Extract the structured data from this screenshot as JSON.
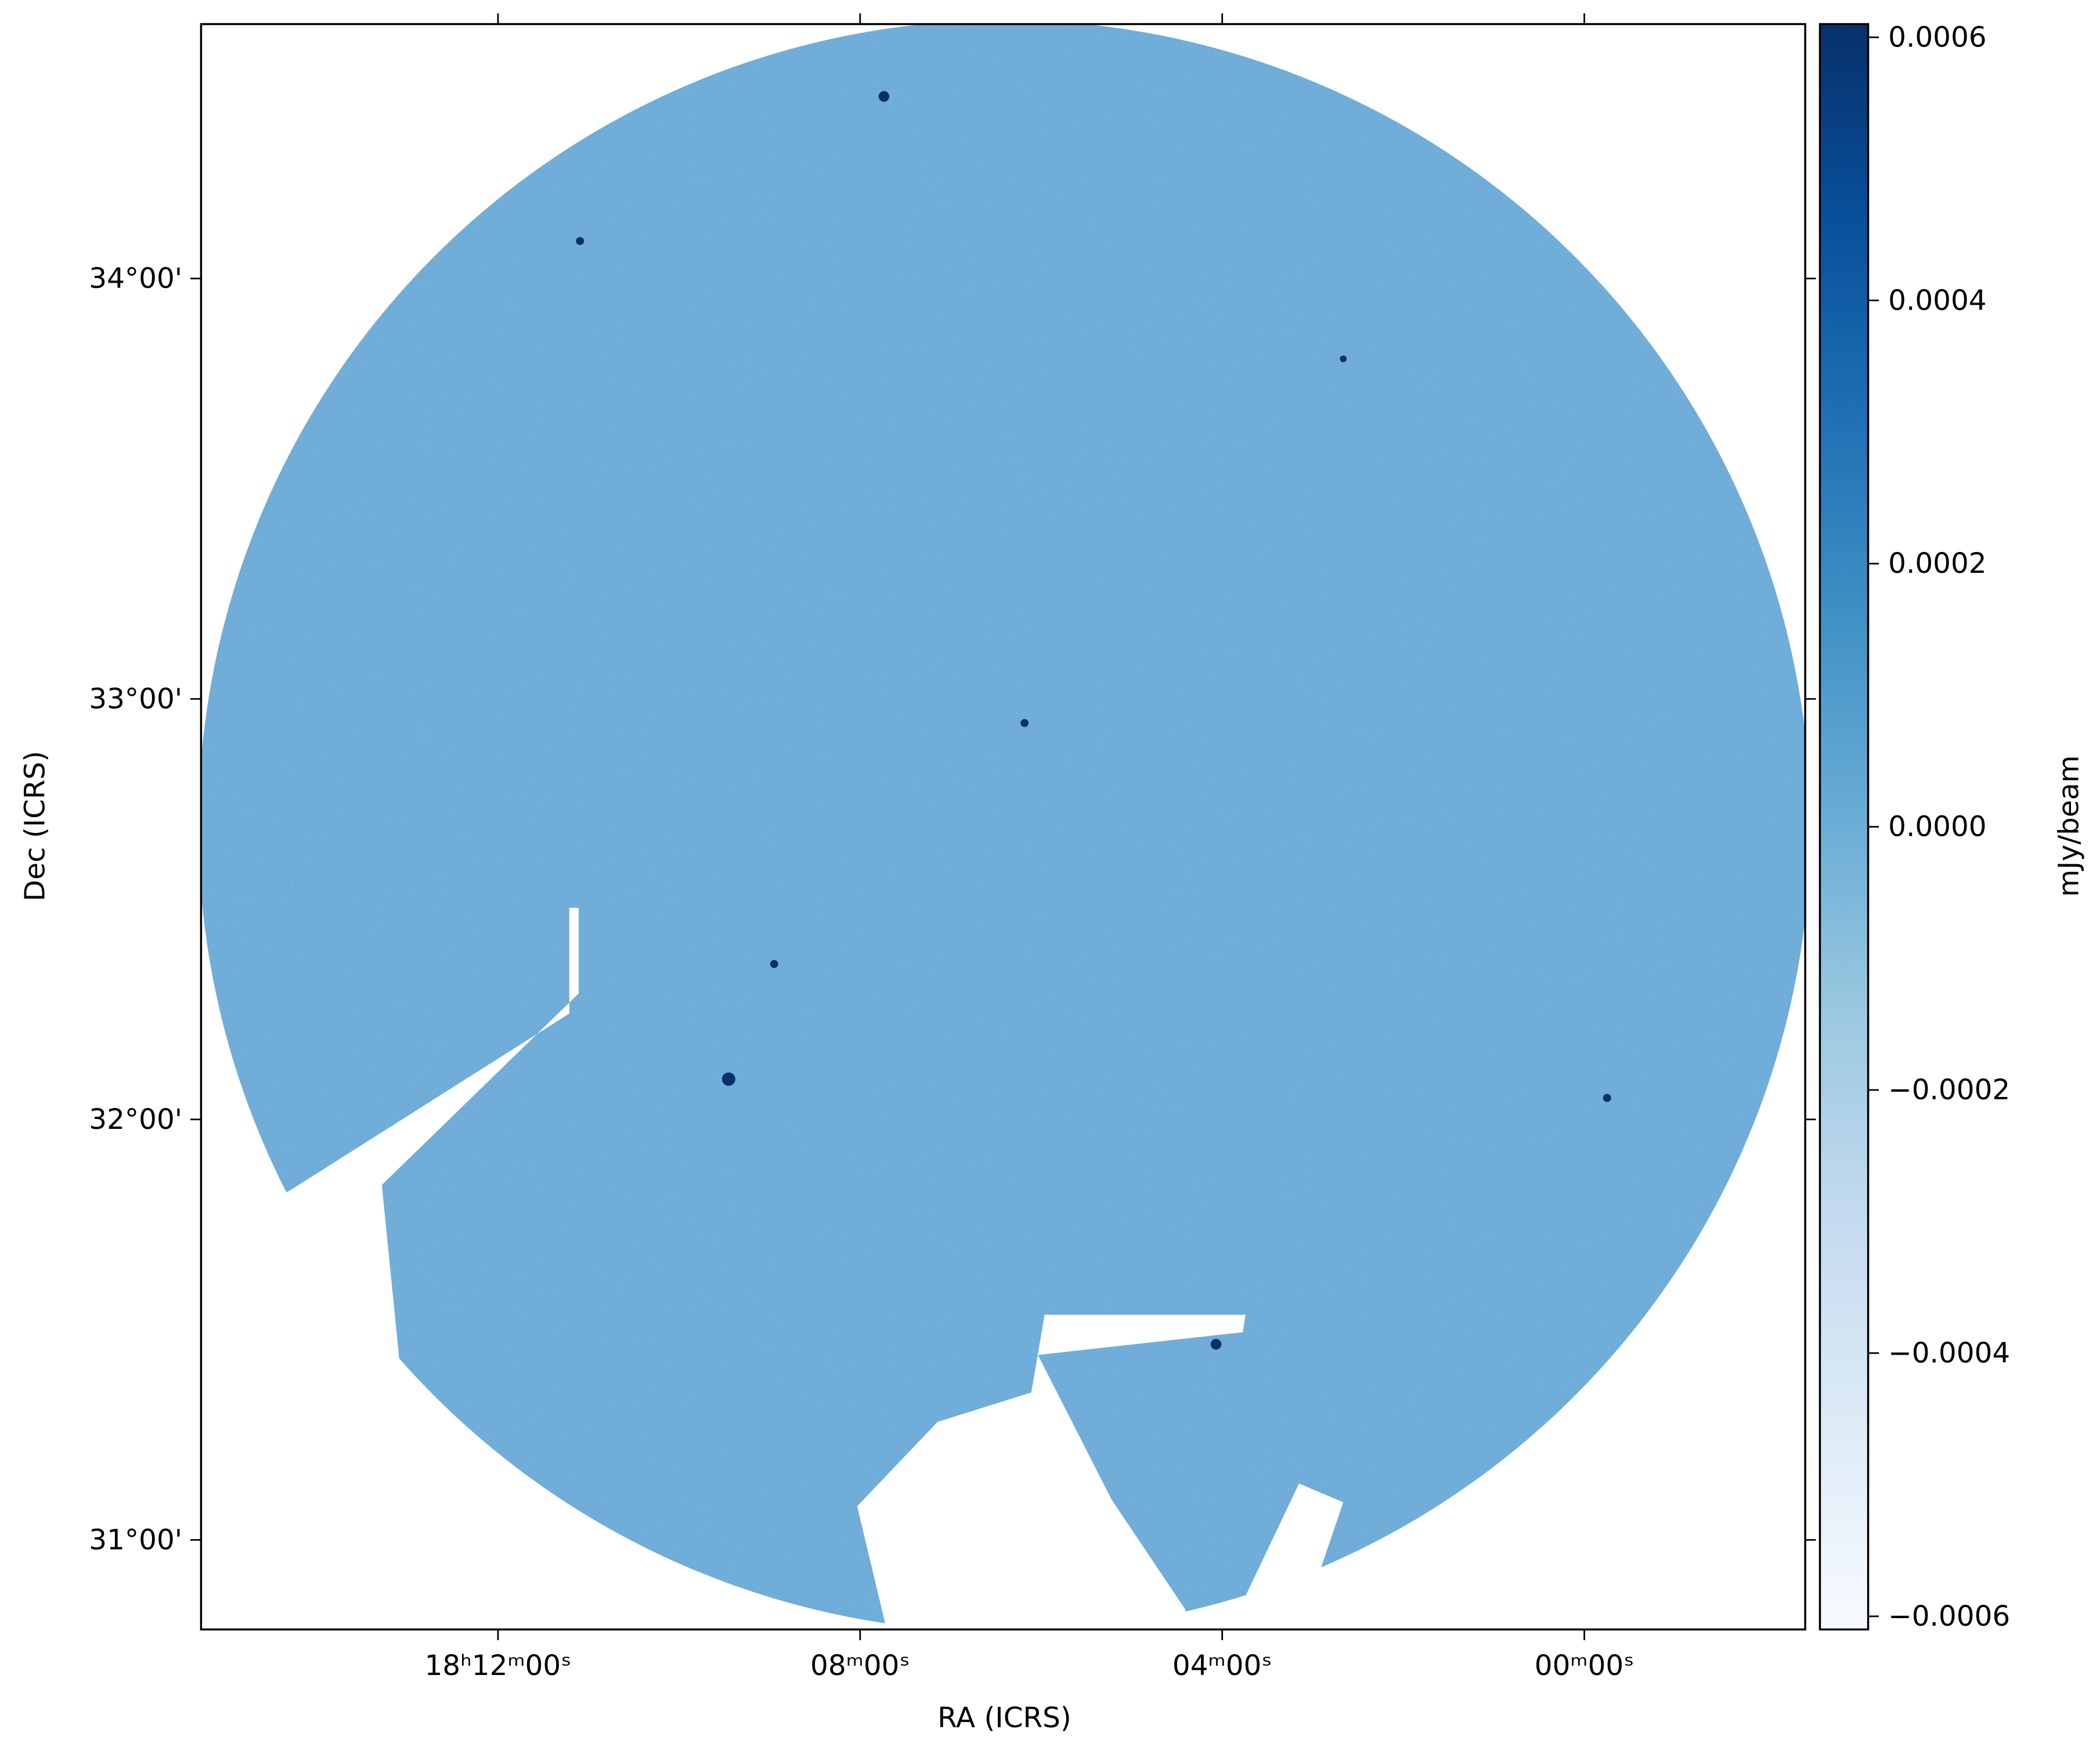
{
  "chart_data": {
    "type": "image",
    "x_label": "RA (ICRS)",
    "y_label": "Dec (ICRS)",
    "xlim": [
      273.82,
      269.39
    ],
    "ylim": [
      30.787,
      34.605
    ],
    "xticks": [
      {
        "value": 273,
        "label": "18ʰ12ᵐ00ˢ"
      },
      {
        "value": 272,
        "label": "08ᵐ00ˢ"
      },
      {
        "value": 271,
        "label": "04ᵐ00ˢ"
      },
      {
        "value": 270,
        "label": "00ᵐ00ˢ"
      }
    ],
    "yticks": [
      {
        "value": 31,
        "label": "31°00'"
      },
      {
        "value": 32,
        "label": "32°00'"
      },
      {
        "value": 33,
        "label": "33°00'"
      },
      {
        "value": 34,
        "label": "34°00'"
      }
    ],
    "image_color": "#6aaad6",
    "colorbar": {
      "label": "mJy/beam",
      "clim": [
        -0.00061,
        0.00061
      ],
      "ticks": [
        0.0006,
        0.0004,
        0.0002,
        {
          "value": 0,
          "label": "0.0000"
        },
        {
          "value": -0.0002,
          "label": "−0.0002"
        },
        {
          "value": -0.0004,
          "label": "−0.0004"
        },
        {
          "value": -0.0006,
          "label": "−0.0006"
        }
      ],
      "colors": [
        "#f7fbff",
        "#deebf7",
        "#c6dbef",
        "#9ecae1",
        "#6baed6",
        "#4292c6",
        "#2171b5",
        "#08519c",
        "#08306b"
      ]
    }
  }
}
